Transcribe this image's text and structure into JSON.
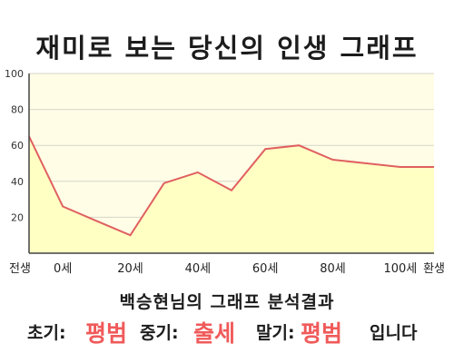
{
  "title": "재미로 보는 당신의 인생 그래프",
  "chart_data": {
    "type": "area",
    "x": [
      "전생",
      0,
      10,
      20,
      30,
      40,
      50,
      60,
      70,
      80,
      90,
      100,
      "환생"
    ],
    "xticks": [
      "전생",
      "0세",
      "20세",
      "40세",
      "60세",
      "80세",
      "100세",
      "환생"
    ],
    "values": [
      65,
      26,
      18,
      10,
      39,
      45,
      35,
      58,
      60,
      52,
      50,
      48,
      48
    ],
    "ylim": [
      0,
      100
    ],
    "yticks": [
      20,
      40,
      60,
      80,
      100
    ],
    "line_color": "#e06060",
    "fill_color": "#ffffc4",
    "plot_bg": "#fffde6",
    "grid": true
  },
  "result": {
    "heading": "백승현님의 그래프 분석결과",
    "early_label": "초기:",
    "early_value": "평범",
    "middle_label": "중기:",
    "middle_value": "출세",
    "late_label": "말기:",
    "late_value": "평범",
    "suffix": "입니다",
    "highlight_color": "#f05a5a"
  }
}
